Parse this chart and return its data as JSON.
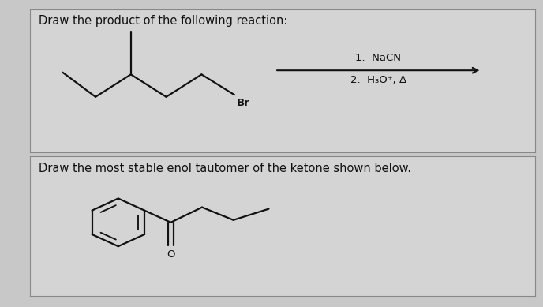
{
  "bg_color": "#c8c8c8",
  "panel1_bg": "#d4d4d4",
  "panel2_bg": "#d4d4d4",
  "border_color": "#888888",
  "title1": "Draw the product of the following reaction:",
  "title2": "Draw the most stable enol tautomer of the ketone shown below.",
  "reagent1": "1.  NaCN",
  "reagent2": "2.  H₃O⁺, Δ",
  "br_label": "Br",
  "o_label": "O",
  "font_size_title": 10.5,
  "font_size_reagent": 9.5,
  "line_color": "#111111",
  "line_width": 1.6,
  "arrow_color": "#111111"
}
